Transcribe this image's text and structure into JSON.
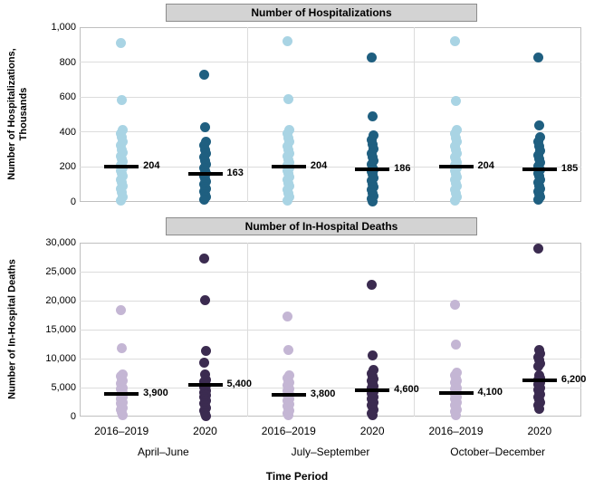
{
  "chart_data": {
    "type": "scatter",
    "subtype": "strip-plot-with-median-markers",
    "xlabel": "Time Period",
    "categories": [
      "April–June",
      "July–September",
      "October–December"
    ],
    "series": [
      "2016–2019",
      "2020"
    ],
    "legend_position": "none",
    "grid": "horizontal",
    "panels": [
      {
        "title": "Number of Hospitalizations",
        "ylabel": "Number of Hospitalizations,\nThousands",
        "ylim": [
          0,
          1000
        ],
        "ytick_values": [
          1000,
          800,
          600,
          400,
          200,
          0
        ],
        "ytick_labels": [
          "1,000",
          "800",
          "600",
          "400",
          "200",
          "0"
        ],
        "colors": [
          "#a9d4e4",
          "#1f5f80"
        ],
        "columns": [
          {
            "group": "April–June",
            "series": "2016–2019",
            "median": 204,
            "median_label": "204",
            "values": [
              908,
              585,
              413,
              392,
              368,
              345,
              322,
              300,
              280,
              262,
              245,
              228,
              212,
              204,
              196,
              180,
              163,
              146,
              128,
              110,
              92,
              73,
              52,
              30,
              10
            ]
          },
          {
            "group": "April–June",
            "series": "2020",
            "median": 163,
            "median_label": "163",
            "values": [
              728,
              430,
              347,
              323,
              300,
              278,
              256,
              235,
              215,
              196,
              178,
              163,
              148,
              133,
              118,
              103,
              88,
              73,
              58,
              43,
              28,
              12
            ]
          },
          {
            "group": "July–September",
            "series": "2016–2019",
            "median": 204,
            "median_label": "204",
            "values": [
              920,
              586,
              412,
              390,
              366,
              343,
              320,
              298,
              278,
              260,
              243,
              226,
              210,
              204,
              194,
              178,
              161,
              144,
              126,
              108,
              90,
              71,
              50,
              28,
              9
            ]
          },
          {
            "group": "July–September",
            "series": "2020",
            "median": 186,
            "median_label": "186",
            "values": [
              828,
              492,
              380,
              354,
              328,
              303,
              279,
              256,
              234,
              213,
              193,
              186,
              174,
              156,
              138,
              120,
              102,
              85,
              68,
              51,
              34,
              17,
              5
            ]
          },
          {
            "group": "October–December",
            "series": "2016–2019",
            "median": 204,
            "median_label": "204",
            "values": [
              919,
              579,
              411,
              389,
              365,
              342,
              319,
              297,
              277,
              259,
              242,
              225,
              209,
              204,
              193,
              177,
              160,
              143,
              125,
              107,
              89,
              70,
              49,
              27,
              8
            ]
          },
          {
            "group": "October–December",
            "series": "2020",
            "median": 185,
            "median_label": "185",
            "values": [
              829,
              440,
              370,
              344,
              318,
              293,
              269,
              246,
              224,
              203,
              185,
              183,
              164,
              146,
              128,
              110,
              93,
              76,
              60,
              44,
              28,
              13
            ]
          }
        ]
      },
      {
        "title": "Number of In-Hospital Deaths",
        "ylabel": "Number of In-Hospital Deaths",
        "ylim": [
          0,
          30000
        ],
        "ytick_values": [
          30000,
          25000,
          20000,
          15000,
          10000,
          5000,
          0
        ],
        "ytick_labels": [
          "30,000",
          "25,000",
          "20,000",
          "15,000",
          "10,000",
          "5,000",
          "0"
        ],
        "colors": [
          "#c4b6d4",
          "#3b2b50"
        ],
        "columns": [
          {
            "group": "April–June",
            "series": "2016–2019",
            "median": 3900,
            "median_label": "3,900",
            "values": [
              18300,
              11800,
              7300,
              6900,
              6500,
              6100,
              5700,
              5300,
              5000,
              4700,
              4400,
              4100,
              3900,
              3700,
              3400,
              3100,
              2800,
              2500,
              2200,
              1900,
              1500,
              1100,
              700,
              300
            ]
          },
          {
            "group": "April–June",
            "series": "2020",
            "median": 5400,
            "median_label": "5,400",
            "values": [
              27200,
              20100,
              11300,
              9300,
              7300,
              6400,
              6000,
              5700,
              5400,
              5100,
              4800,
              4500,
              4200,
              3900,
              3600,
              3300,
              3000,
              2700,
              2300,
              1900,
              1500,
              1000,
              500,
              100
            ]
          },
          {
            "group": "July–September",
            "series": "2016–2019",
            "median": 3800,
            "median_label": "3,800",
            "values": [
              17200,
              11500,
              7100,
              6600,
              6200,
              5800,
              5400,
              5000,
              4700,
              4400,
              4100,
              3800,
              3600,
              3300,
              3000,
              2700,
              2400,
              2100,
              1800,
              1400,
              1000,
              600,
              200
            ]
          },
          {
            "group": "July–September",
            "series": "2020",
            "median": 4600,
            "median_label": "4,600",
            "values": [
              22800,
              10600,
              8100,
              7500,
              7000,
              6500,
              6100,
              5700,
              5300,
              4900,
              4600,
              4300,
              4000,
              3700,
              3400,
              3100,
              2800,
              2400,
              2000,
              1600,
              1100,
              600,
              200
            ]
          },
          {
            "group": "October–December",
            "series": "2016–2019",
            "median": 4100,
            "median_label": "4,100",
            "values": [
              19300,
              12500,
              7600,
              7100,
              6600,
              6200,
              5800,
              5400,
              5000,
              4700,
              4400,
              4100,
              3900,
              3600,
              3300,
              3000,
              2700,
              2400,
              2000,
              1600,
              1200,
              800,
              300
            ]
          },
          {
            "group": "October–December",
            "series": "2020",
            "median": 6200,
            "median_label": "6,200",
            "values": [
              29000,
              11500,
              10900,
              10300,
              9700,
              9100,
              8600,
              7100,
              6700,
              6400,
              6200,
              5900,
              5600,
              5300,
              5000,
              4600,
              4200,
              3800,
              3400,
              2900,
              2400,
              1900,
              1300
            ]
          }
        ]
      }
    ]
  }
}
